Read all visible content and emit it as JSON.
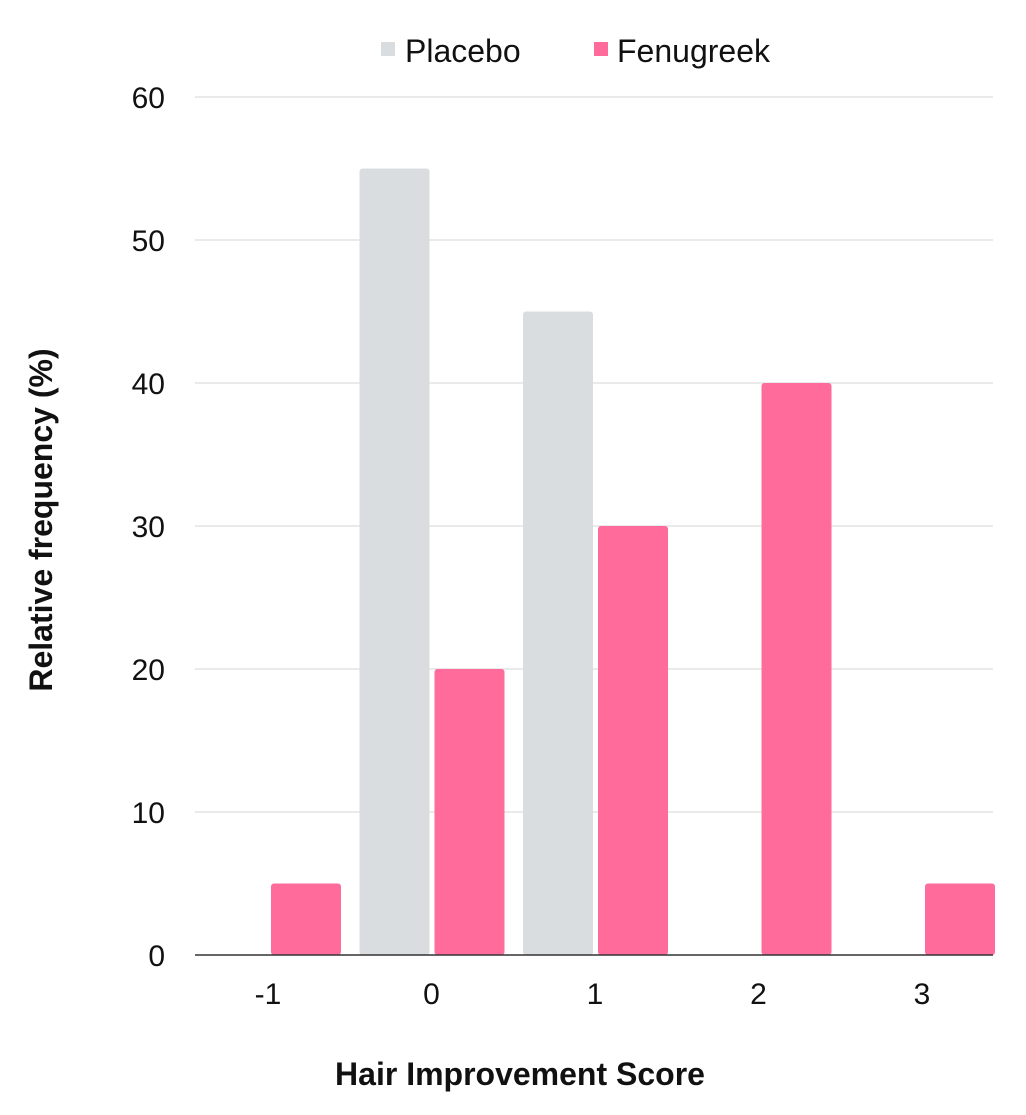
{
  "chart_data": {
    "type": "bar",
    "title": "",
    "xlabel": "Hair Improvement Score",
    "ylabel": "Relative frequency (%)",
    "categories": [
      "-1",
      "0",
      "1",
      "2",
      "3"
    ],
    "series": [
      {
        "name": "Placebo",
        "color": "#d9dde0",
        "values": [
          0,
          55,
          45,
          0,
          0
        ]
      },
      {
        "name": "Fenugreek",
        "color": "#ff6b9b",
        "values": [
          5,
          20,
          30,
          40,
          5
        ]
      }
    ],
    "ylim": [
      0,
      60
    ],
    "yticks": [
      "0",
      "10",
      "20",
      "30",
      "40",
      "50",
      "60"
    ],
    "grid": true,
    "legend_position": "top-center"
  }
}
